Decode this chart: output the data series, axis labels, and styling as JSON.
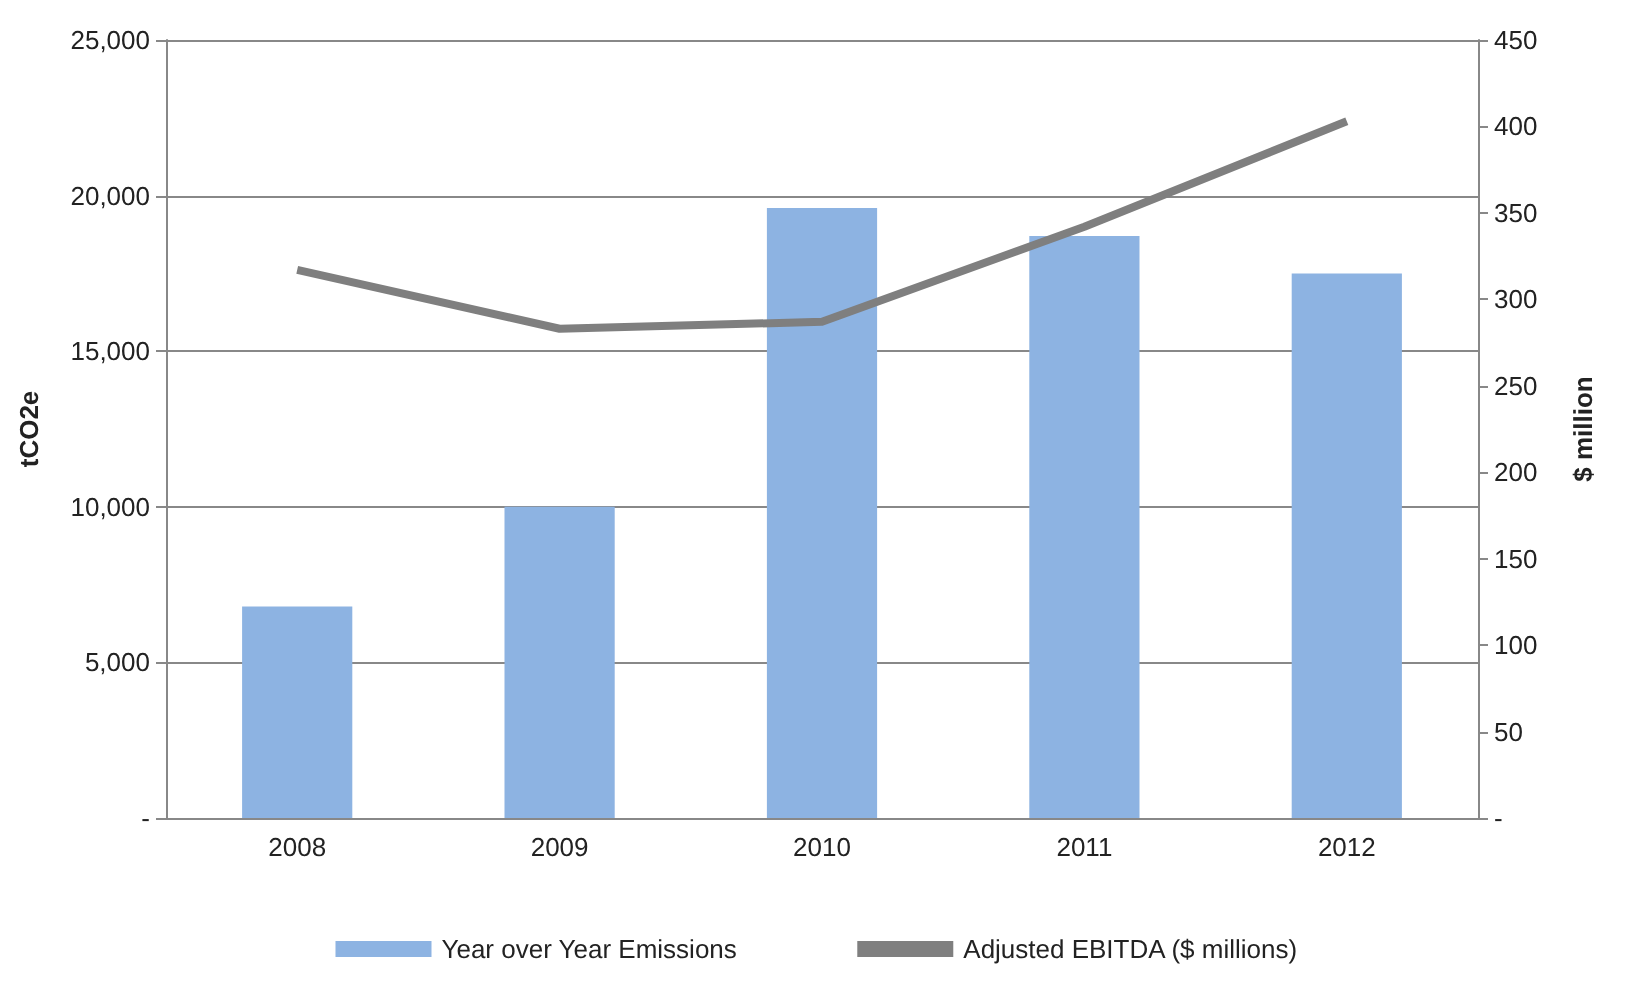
{
  "chart_data": {
    "type": "bar",
    "categories": [
      "2008",
      "2009",
      "2010",
      "2011",
      "2012"
    ],
    "series": [
      {
        "name": "Year over Year Emissions",
        "color": "#8db3e2",
        "values": [
          6800,
          10000,
          19600,
          18700,
          17500
        ]
      },
      {
        "name": "Adjusted EBITDA ($ millions)",
        "type": "line",
        "axis": "y2",
        "color": "#7f7f7f",
        "values": [
          317,
          283,
          287,
          342,
          403
        ]
      }
    ],
    "ylabel": "tCO2e",
    "y2label": "$ million",
    "ylim": [
      0,
      25000
    ],
    "yticks": [
      {
        "value": 0,
        "label": "-"
      },
      {
        "value": 5000,
        "label": "5,000"
      },
      {
        "value": 10000,
        "label": "10,000"
      },
      {
        "value": 15000,
        "label": "15,000"
      },
      {
        "value": 20000,
        "label": "20,000"
      },
      {
        "value": 25000,
        "label": "25,000"
      }
    ],
    "y2lim": [
      0,
      450
    ],
    "y2ticks": [
      {
        "value": 0,
        "label": "-"
      },
      50,
      100,
      150,
      200,
      250,
      300,
      350,
      400,
      450
    ],
    "grid": "y",
    "legend": "bottom",
    "marker": "none",
    "line_style": "solid"
  }
}
